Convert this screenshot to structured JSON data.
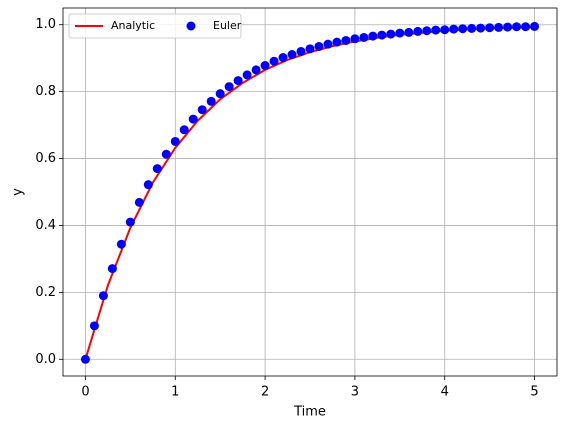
{
  "chart_data": {
    "type": "line",
    "xlabel": "Time",
    "ylabel": "y",
    "xlim": [
      -0.25,
      5.25
    ],
    "ylim": [
      -0.05,
      1.05
    ],
    "xticks": [
      0,
      1,
      2,
      3,
      4,
      5
    ],
    "yticks": [
      {
        "value": 0,
        "label": "0.0"
      },
      {
        "value": 0.2,
        "label": "0.2"
      },
      {
        "value": 0.4,
        "label": "0.4"
      },
      {
        "value": 0.6,
        "label": "0.6"
      },
      {
        "value": 0.8,
        "label": "0.8"
      },
      {
        "value": 1.0,
        "label": "1.0"
      }
    ],
    "grid": true,
    "legend": "upper-left",
    "series": [
      {
        "name": "Analytic",
        "type": "line",
        "color": "#ff0000",
        "x": [
          0,
          0.25,
          0.5,
          0.75,
          1,
          1.25,
          1.5,
          1.75,
          2,
          2.25,
          2.5,
          2.75,
          3,
          3.25,
          3.5,
          3.75,
          4,
          4.25,
          4.5,
          4.75,
          5
        ],
        "values": [
          0,
          0.221,
          0.393,
          0.528,
          0.632,
          0.713,
          0.777,
          0.826,
          0.865,
          0.895,
          0.918,
          0.936,
          0.95,
          0.961,
          0.97,
          0.976,
          0.982,
          0.986,
          0.989,
          0.991,
          0.993
        ]
      },
      {
        "name": "Euler",
        "type": "scatter",
        "color": "#0000ff",
        "x": [
          0,
          0.1,
          0.2,
          0.3,
          0.4,
          0.5,
          0.6,
          0.7,
          0.8,
          0.9,
          1,
          1.1,
          1.2,
          1.3,
          1.4,
          1.5,
          1.6,
          1.7,
          1.8,
          1.9,
          2,
          2.1,
          2.2,
          2.3,
          2.4,
          2.5,
          2.6,
          2.7,
          2.8,
          2.9,
          3,
          3.1,
          3.2,
          3.3,
          3.4,
          3.5,
          3.6,
          3.7,
          3.8,
          3.9,
          4,
          4.1,
          4.2,
          4.3,
          4.4,
          4.5,
          4.6,
          4.7,
          4.8,
          4.9,
          5
        ],
        "values": [
          0,
          0.1,
          0.19,
          0.271,
          0.344,
          0.41,
          0.469,
          0.522,
          0.57,
          0.613,
          0.651,
          0.686,
          0.718,
          0.746,
          0.771,
          0.794,
          0.815,
          0.833,
          0.85,
          0.865,
          0.878,
          0.891,
          0.902,
          0.911,
          0.92,
          0.928,
          0.935,
          0.942,
          0.948,
          0.953,
          0.958,
          0.962,
          0.966,
          0.969,
          0.972,
          0.975,
          0.977,
          0.98,
          0.982,
          0.984,
          0.985,
          0.987,
          0.988,
          0.989,
          0.99,
          0.991,
          0.992,
          0.993,
          0.994,
          0.994,
          0.995
        ]
      }
    ]
  }
}
